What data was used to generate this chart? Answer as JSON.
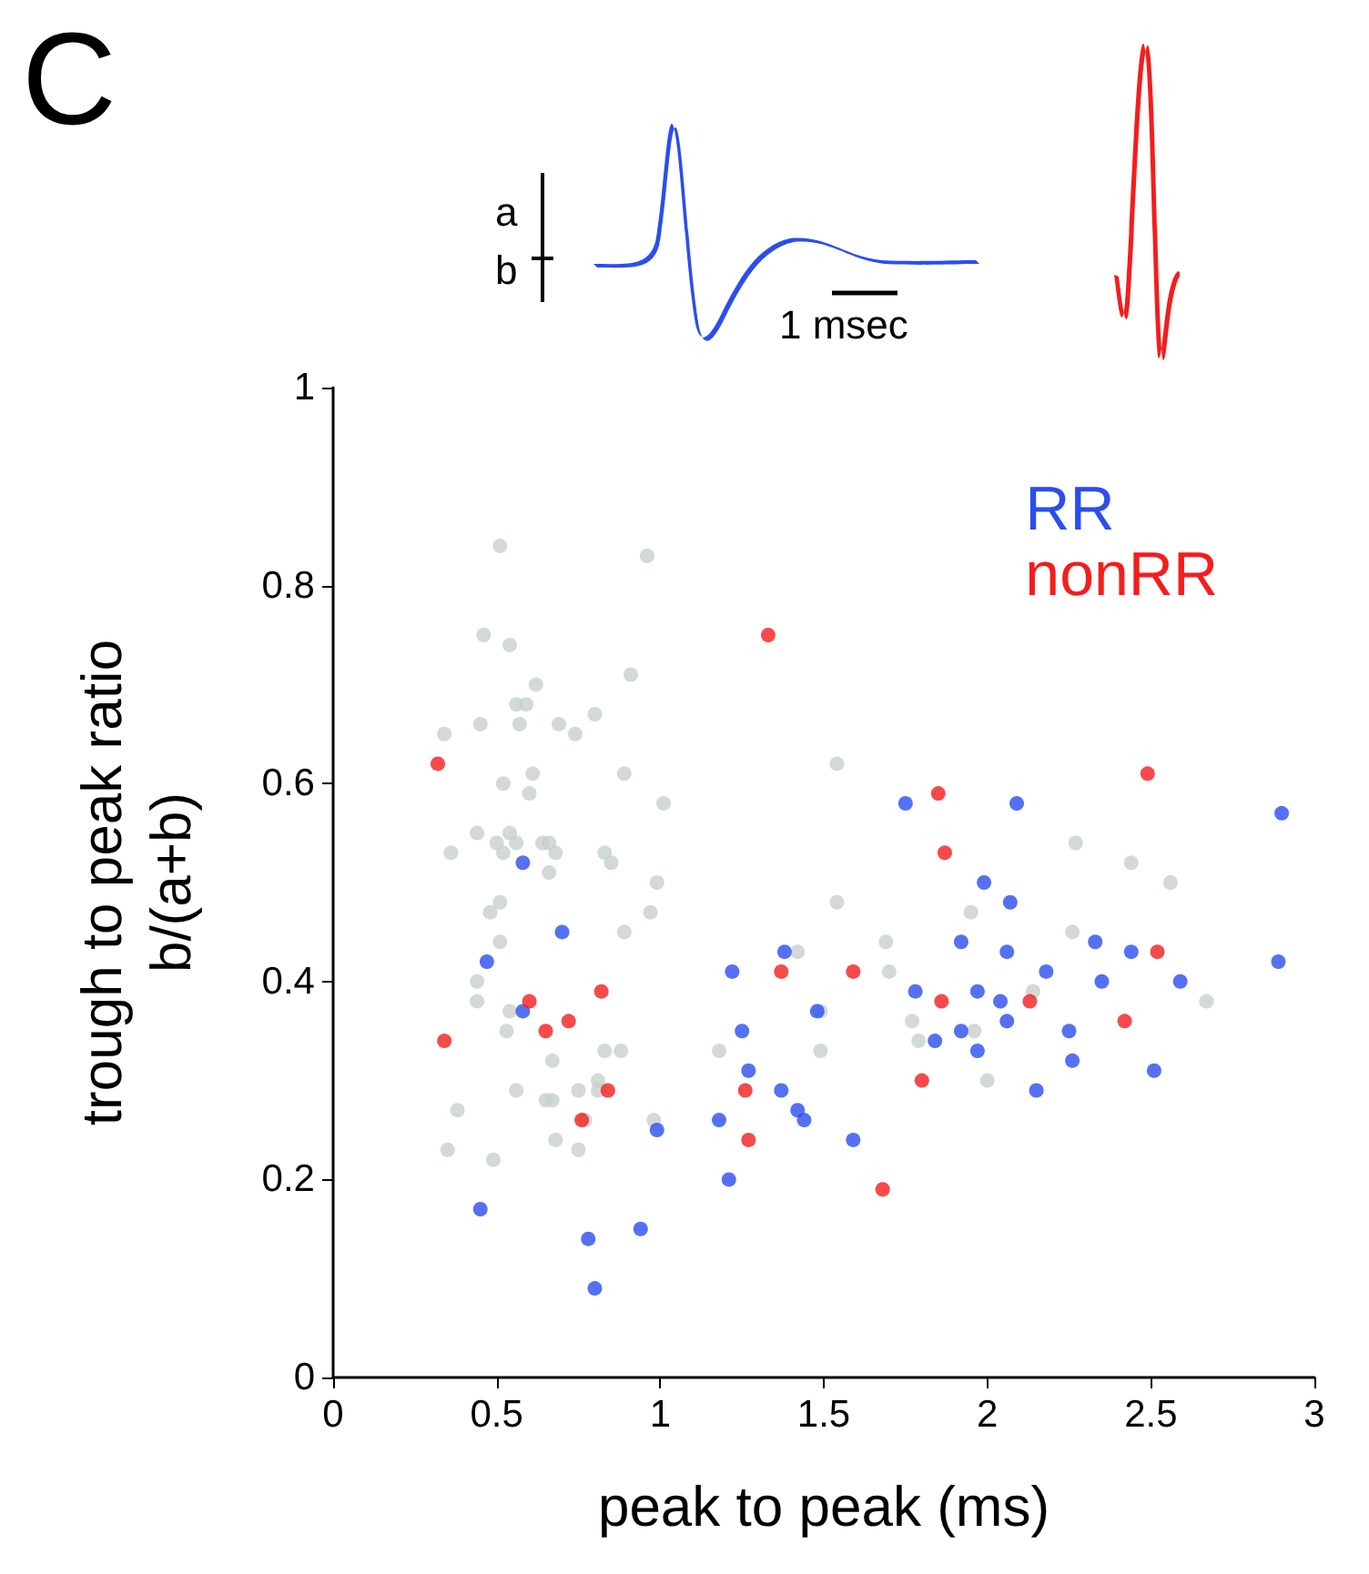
{
  "chart_data": {
    "type": "scatter",
    "xlabel": "peak to peak (ms)",
    "ylabel": "trough to peak ratio\nb/(a+b)",
    "xlim": [
      0,
      3
    ],
    "ylim": [
      0,
      1
    ],
    "xticks": [
      0,
      0.5,
      1,
      1.5,
      2,
      2.5,
      3
    ],
    "yticks": [
      0,
      0.2,
      0.4,
      0.6,
      0.8,
      1
    ],
    "grid": false,
    "legend": "top right",
    "marker": "circle",
    "annotations": [
      "C",
      "a",
      "b",
      "1 msec"
    ],
    "series": [
      {
        "color": "#c8cfcc",
        "x": [
          0.51,
          0.96,
          0.46,
          0.54,
          0.91,
          0.62,
          0.56,
          0.59,
          0.45,
          0.57,
          0.69,
          0.74,
          0.8,
          0.34,
          0.52,
          0.61,
          0.6,
          0.89,
          1.01,
          0.44,
          0.36,
          0.5,
          0.54,
          0.56,
          0.52,
          0.64,
          0.66,
          0.68,
          0.66,
          0.83,
          0.85,
          0.99,
          0.51,
          0.48,
          0.51,
          0.89,
          0.97,
          0.44,
          0.44,
          0.54,
          0.53,
          0.83,
          0.88,
          0.67,
          0.56,
          0.81,
          0.81,
          0.75,
          0.65,
          0.67,
          0.38,
          0.77,
          0.98,
          0.68,
          0.75,
          0.35,
          0.49,
          1.54,
          1.54,
          1.42,
          1.69,
          1.7,
          1.95,
          1.49,
          1.49,
          1.18,
          1.77,
          1.79,
          1.96,
          2.0,
          2.27,
          2.44,
          2.56,
          2.26,
          2.14,
          2.67
        ],
        "values": [
          0.84,
          0.83,
          0.75,
          0.74,
          0.71,
          0.7,
          0.68,
          0.68,
          0.66,
          0.66,
          0.66,
          0.65,
          0.67,
          0.65,
          0.6,
          0.61,
          0.59,
          0.61,
          0.58,
          0.55,
          0.53,
          0.54,
          0.55,
          0.54,
          0.53,
          0.54,
          0.54,
          0.53,
          0.51,
          0.53,
          0.52,
          0.5,
          0.48,
          0.47,
          0.44,
          0.45,
          0.47,
          0.4,
          0.38,
          0.37,
          0.35,
          0.33,
          0.33,
          0.32,
          0.29,
          0.3,
          0.29,
          0.29,
          0.28,
          0.28,
          0.27,
          0.26,
          0.26,
          0.24,
          0.23,
          0.23,
          0.22,
          0.62,
          0.48,
          0.43,
          0.44,
          0.41,
          0.47,
          0.37,
          0.33,
          0.33,
          0.36,
          0.34,
          0.35,
          0.3,
          0.54,
          0.52,
          0.5,
          0.45,
          0.39,
          0.38
        ]
      },
      {
        "name": "RR",
        "color": "#2b4df0",
        "x": [
          0.58,
          0.7,
          0.47,
          0.58,
          0.99,
          0.45,
          0.94,
          0.78,
          0.8,
          1.22,
          1.38,
          1.75,
          2.09,
          1.99,
          2.07,
          1.92,
          2.06,
          1.48,
          1.78,
          1.97,
          2.04,
          2.06,
          1.92,
          1.84,
          1.97,
          1.25,
          1.27,
          1.37,
          1.42,
          1.44,
          1.18,
          1.59,
          1.21,
          2.9,
          2.89,
          2.33,
          2.44,
          2.59,
          2.18,
          2.35,
          2.25,
          2.26,
          2.51,
          2.15
        ],
        "values": [
          0.52,
          0.45,
          0.42,
          0.37,
          0.25,
          0.17,
          0.15,
          0.14,
          0.09,
          0.41,
          0.43,
          0.58,
          0.58,
          0.5,
          0.48,
          0.44,
          0.43,
          0.37,
          0.39,
          0.39,
          0.38,
          0.36,
          0.35,
          0.34,
          0.33,
          0.35,
          0.31,
          0.29,
          0.27,
          0.26,
          0.26,
          0.24,
          0.2,
          0.57,
          0.42,
          0.44,
          0.43,
          0.4,
          0.41,
          0.4,
          0.35,
          0.32,
          0.31,
          0.29
        ]
      },
      {
        "name": "nonRR",
        "color": "#f41d1d",
        "x": [
          0.32,
          0.34,
          0.6,
          0.82,
          0.72,
          0.65,
          0.84,
          0.76,
          1.33,
          1.85,
          1.87,
          1.37,
          1.59,
          1.86,
          1.8,
          1.26,
          1.27,
          1.68,
          2.49,
          2.52,
          2.13,
          2.42
        ],
        "values": [
          0.62,
          0.34,
          0.38,
          0.39,
          0.36,
          0.35,
          0.29,
          0.26,
          0.75,
          0.59,
          0.53,
          0.41,
          0.41,
          0.38,
          0.3,
          0.29,
          0.24,
          0.19,
          0.61,
          0.43,
          0.38,
          0.36
        ]
      }
    ]
  }
}
